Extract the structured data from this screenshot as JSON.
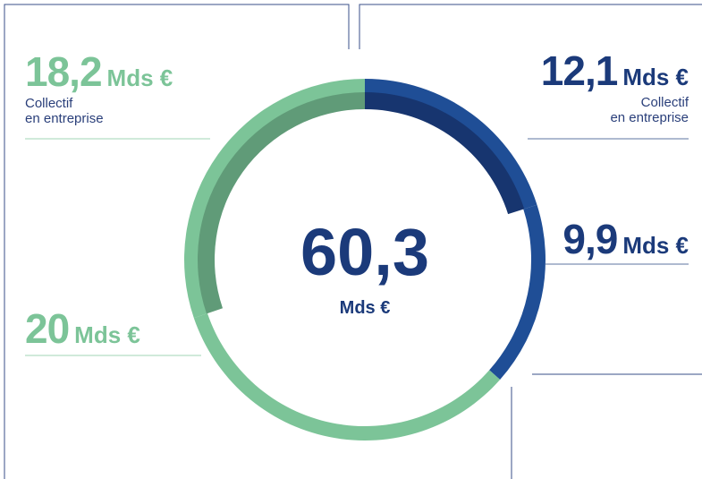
{
  "chart_data": {
    "type": "donut",
    "values": [
      12.1,
      9.9,
      20,
      18.2
    ],
    "value_labels": [
      "12,1",
      "9,9",
      "20",
      "18,2"
    ],
    "unit": "Mds €",
    "sublabels": [
      [
        "Collectif",
        "en entreprise"
      ],
      null,
      null,
      [
        "Collectif",
        "en entreprise"
      ]
    ],
    "colors": [
      "#1f4e96",
      "#1f4e96",
      "#7cc498",
      "#7cc498"
    ],
    "inner_colors": [
      "#17356f",
      null,
      null,
      "#609b78"
    ],
    "label_colors": [
      "#1b3a7a",
      "#1b3a7a",
      "#7cc498",
      "#7cc498"
    ],
    "total_label": "60,3",
    "total_unit": "Mds €",
    "total_color": "#1b3a7a"
  }
}
